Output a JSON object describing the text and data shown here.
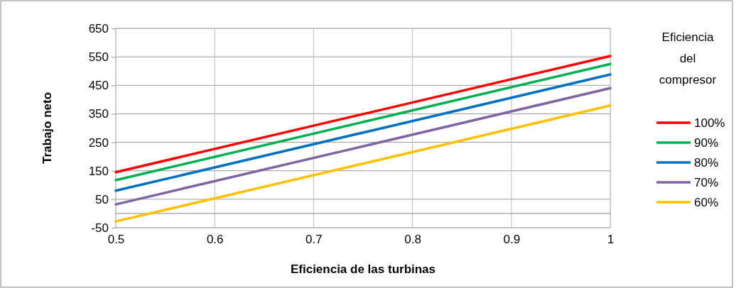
{
  "chart_data": {
    "type": "line",
    "xlabel": "Eficiencia de las turbinas",
    "ylabel": "Trabajo neto",
    "legend_title": "Eficiencia del compresor",
    "x": [
      0.5,
      0.75,
      1
    ],
    "series": [
      {
        "name": "100%",
        "color": "#ff0000",
        "values": [
          145,
          349,
          553
        ]
      },
      {
        "name": "90%",
        "color": "#00b050",
        "values": [
          117,
          321,
          525
        ]
      },
      {
        "name": "80%",
        "color": "#0070c0",
        "values": [
          80,
          284,
          488
        ]
      },
      {
        "name": "70%",
        "color": "#8064a2",
        "values": [
          32,
          236,
          440
        ]
      },
      {
        "name": "60%",
        "color": "#ffc000",
        "values": [
          -28,
          175,
          379
        ]
      }
    ],
    "xlim": [
      0.5,
      1
    ],
    "xticks": [
      0.5,
      0.6,
      0.7,
      0.8,
      0.9,
      1
    ],
    "ylim": [
      -50,
      650
    ],
    "yticks": [
      -50,
      50,
      150,
      250,
      350,
      450,
      550,
      650
    ],
    "grid": true,
    "legend": "right",
    "marker": "none",
    "line_style": "solid"
  }
}
